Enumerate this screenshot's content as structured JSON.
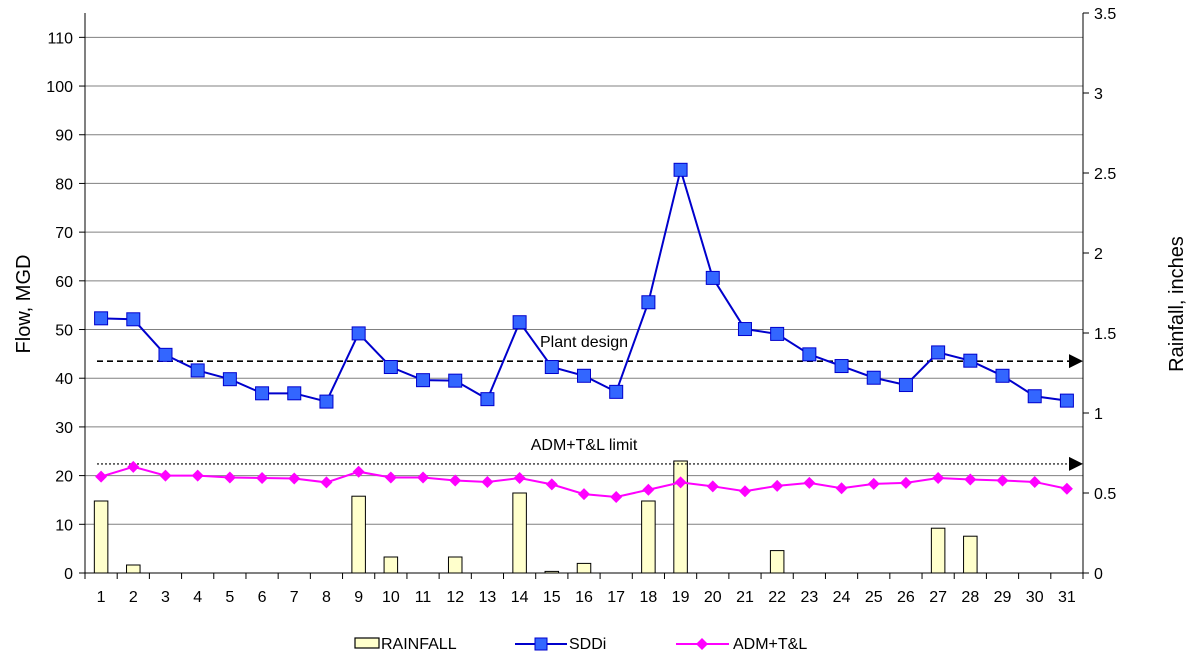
{
  "chart_data": {
    "type": "bar+line",
    "title": "",
    "xlabel": "",
    "ylabel": "Flow, MGD",
    "ylabel_right": "Rainfall, inches",
    "ylim": [
      0,
      115
    ],
    "ylim_right": [
      0,
      3.5
    ],
    "y_ticks": [
      "0",
      "10",
      "20",
      "30",
      "40",
      "50",
      "60",
      "70",
      "80",
      "90",
      "100",
      "110"
    ],
    "y_ticks_right": [
      "0",
      "0.5",
      "1",
      "1.5",
      "2",
      "2.5",
      "3",
      "3.5"
    ],
    "categories": [
      "1",
      "2",
      "3",
      "4",
      "5",
      "6",
      "7",
      "8",
      "9",
      "10",
      "11",
      "12",
      "13",
      "14",
      "15",
      "16",
      "17",
      "18",
      "19",
      "20",
      "21",
      "22",
      "23",
      "24",
      "25",
      "26",
      "27",
      "28",
      "29",
      "30",
      "31"
    ],
    "grid": true,
    "legend_position": "bottom",
    "series": [
      {
        "name": "RAINFALL",
        "type": "bar",
        "axis": "right",
        "color": "#FFFFCC",
        "values": [
          0.45,
          0.05,
          0,
          0,
          0,
          0,
          0,
          0,
          0.48,
          0.1,
          0,
          0.1,
          0,
          0.5,
          0.01,
          0.06,
          0,
          0.45,
          0.7,
          0,
          0,
          0.14,
          0,
          0,
          0,
          0,
          0.28,
          0.23,
          0,
          0,
          0
        ]
      },
      {
        "name": "SDDi",
        "type": "line",
        "axis": "left",
        "color": "#0000CC",
        "marker_color": "#3366FF",
        "marker": "square",
        "values": [
          52.3,
          52.1,
          44.8,
          41.6,
          39.8,
          36.9,
          36.9,
          35.2,
          49.2,
          42.3,
          39.6,
          39.5,
          35.7,
          51.5,
          42.3,
          40.5,
          37.2,
          55.6,
          82.8,
          60.6,
          50.1,
          49.1,
          44.9,
          42.5,
          40.1,
          38.6,
          45.3,
          43.6,
          40.5,
          36.3,
          35.4
        ]
      },
      {
        "name": "ADM+T&L",
        "type": "line",
        "axis": "left",
        "color": "#FF00FF",
        "marker": "diamond",
        "values": [
          19.8,
          21.8,
          20.0,
          20.0,
          19.6,
          19.5,
          19.4,
          18.6,
          20.8,
          19.6,
          19.6,
          19.0,
          18.7,
          19.5,
          18.2,
          16.2,
          15.6,
          17.1,
          18.6,
          17.8,
          16.8,
          17.9,
          18.5,
          17.4,
          18.3,
          18.5,
          19.5,
          19.2,
          19.0,
          18.7,
          17.3
        ]
      }
    ],
    "annotations": [
      {
        "text": "Plant design",
        "value": 43.5,
        "style": "dashed"
      },
      {
        "text": "ADM+T&L limit",
        "value": 22.4,
        "style": "dotted"
      }
    ]
  }
}
